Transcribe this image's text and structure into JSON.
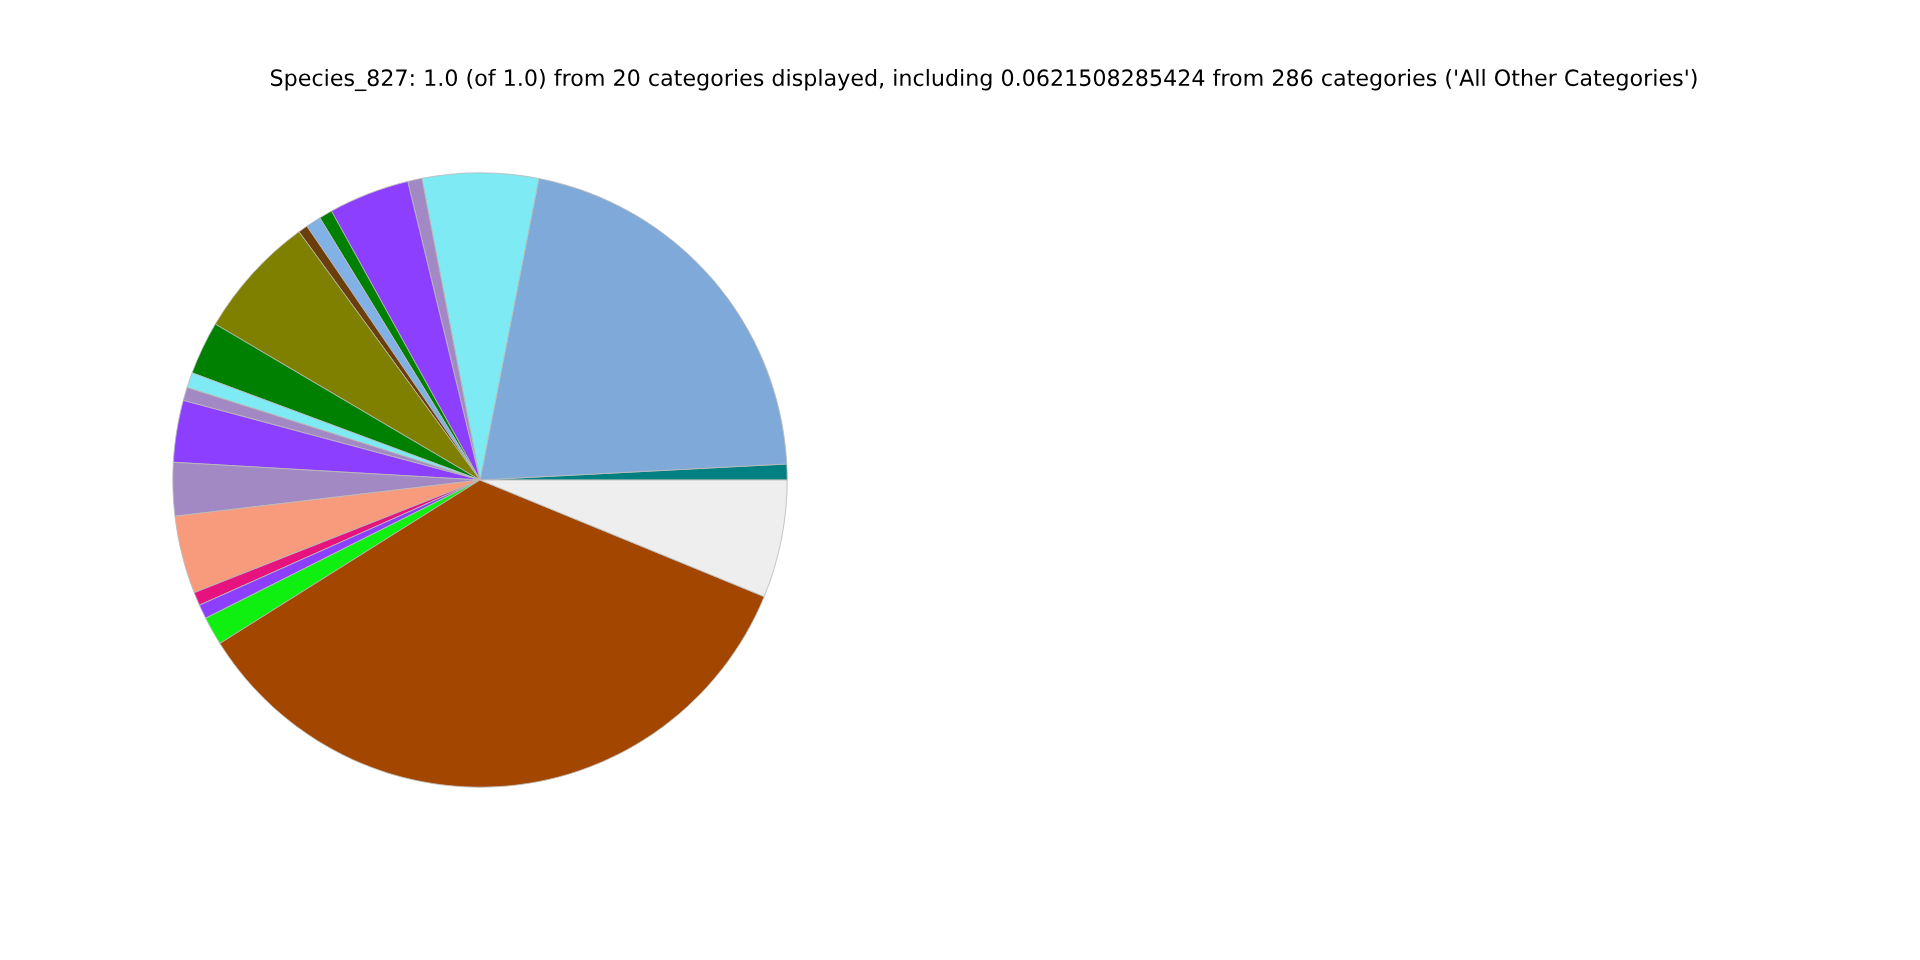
{
  "chart_data": {
    "type": "pie",
    "title": "Species_827: 1.0 (of 1.0) from 20 categories displayed, including 0.0621508285424 from 286 categories ('All Other Categories')",
    "categories": [
      null,
      null,
      null,
      null,
      null,
      null,
      null,
      null,
      null,
      null,
      null,
      null,
      null,
      null,
      null,
      null,
      null,
      null,
      null,
      null
    ],
    "values": [
      0.83,
      21.1,
      6.1,
      0.75,
      4.25,
      0.7,
      0.8,
      0.5,
      6.5,
      2.8,
      0.8,
      0.7,
      3.25,
      2.8,
      4.1,
      0.7,
      0.75,
      1.5,
      34.87,
      6.2
    ],
    "colors": [
      "#008080",
      "#7fa9d9",
      "#7deaf4",
      "#a389c4",
      "#8c3fff",
      "#008000",
      "#82b1e6",
      "#6b3e0e",
      "#808000",
      "#008000",
      "#7deaf4",
      "#a389c4",
      "#8c3fff",
      "#a389c4",
      "#f89a7c",
      "#e6127e",
      "#8c3fff",
      "#10f010",
      "#a34700",
      "#eeeeee"
    ]
  }
}
